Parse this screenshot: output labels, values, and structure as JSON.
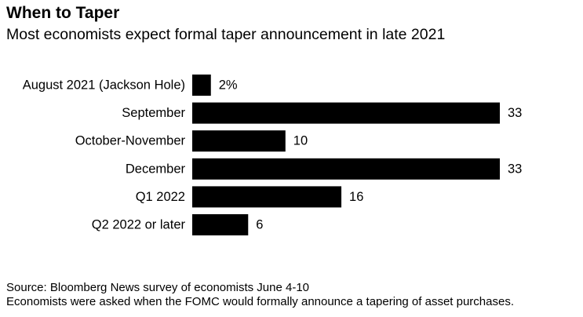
{
  "chart_data": {
    "type": "bar",
    "orientation": "horizontal",
    "title": "When to Taper",
    "subtitle": "Most economists expect formal taper announcement in late 2021",
    "categories": [
      "August 2021 (Jackson Hole)",
      "September",
      "October-November",
      "December",
      "Q1 2022",
      "Q2 2022 or later"
    ],
    "values": [
      2,
      33,
      10,
      33,
      16,
      6
    ],
    "value_labels": [
      "2%",
      "33",
      "10",
      "33",
      "16",
      "6"
    ],
    "unit": "%",
    "xlim": [
      0,
      33
    ],
    "source": "Source: Bloomberg News survey of economists June 4-10",
    "note": "Economists were asked when the FOMC would formally announce a tapering of asset purchases.",
    "colors": {
      "bar": "#000000",
      "text": "#000000",
      "background": "#ffffff"
    }
  }
}
